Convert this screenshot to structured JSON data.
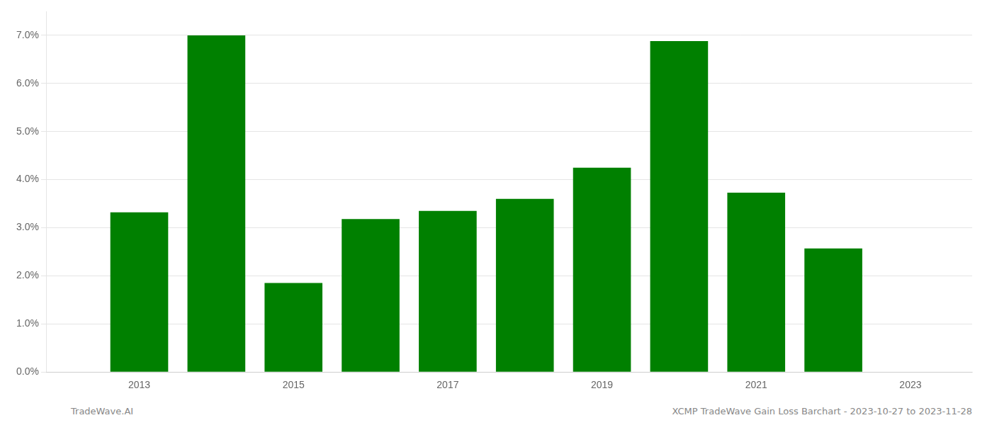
{
  "chart_data": {
    "type": "bar",
    "x": [
      2013,
      2014,
      2015,
      2016,
      2017,
      2018,
      2019,
      2020,
      2021,
      2022
    ],
    "values": [
      0.0332,
      0.07,
      0.0185,
      0.0318,
      0.0335,
      0.036,
      0.0425,
      0.0688,
      0.0373,
      0.0257
    ],
    "color": "#008000",
    "xlim": [
      2011.8,
      2023.8
    ],
    "xticks": [
      2013,
      2015,
      2017,
      2019,
      2021,
      2023
    ],
    "ylim": [
      0,
      0.075
    ],
    "yticks": [
      {
        "value": 0,
        "label": "0.0%"
      },
      {
        "value": 0.01,
        "label": "1.0%"
      },
      {
        "value": 0.02,
        "label": "2.0%"
      },
      {
        "value": 0.03,
        "label": "3.0%"
      },
      {
        "value": 0.04,
        "label": "4.0%"
      },
      {
        "value": 0.05,
        "label": "5.0%"
      },
      {
        "value": 0.06,
        "label": "6.0%"
      },
      {
        "value": 0.07,
        "label": "7.0%"
      }
    ],
    "grid": "y",
    "annotations": [
      "TradeWave.AI",
      "XCMP TradeWave Gain Loss Barchart - 2023-10-27 to 2023-11-28"
    ]
  }
}
